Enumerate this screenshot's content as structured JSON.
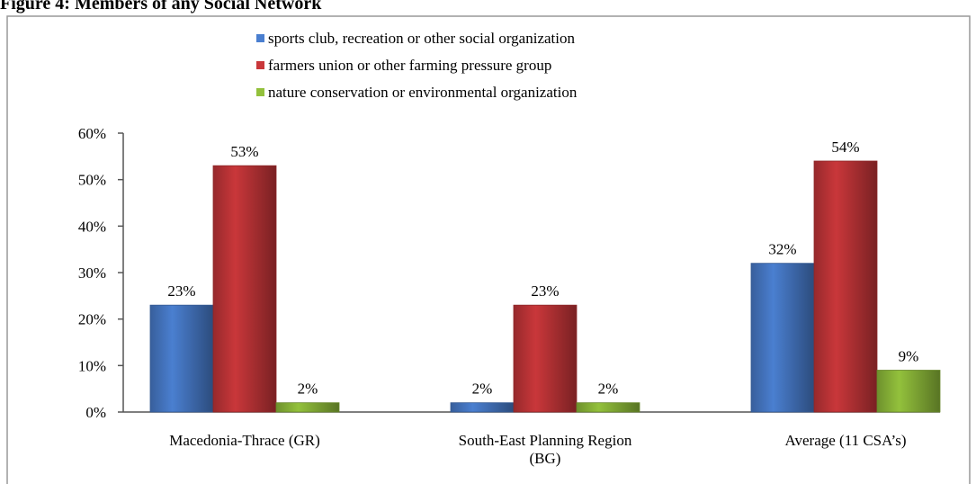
{
  "chart_data": {
    "type": "bar",
    "title": "Figure 4: Members of any Social Network",
    "categories": [
      "Macedonia-Thrace (GR)",
      "South-East Planning Region (BG)",
      "Average (11 CSA’s)"
    ],
    "series": [
      {
        "name": "sports club, recreation or other social organization",
        "color": "#4a7fd0",
        "values": [
          23,
          2,
          32
        ],
        "value_labels": [
          "23%",
          "2%",
          "32%"
        ]
      },
      {
        "name": "farmers union or other farming pressure group",
        "color": "#c9373a",
        "values": [
          53,
          23,
          54
        ],
        "value_labels": [
          "53%",
          "23%",
          "54%"
        ]
      },
      {
        "name": "nature conservation or environmental organization",
        "color": "#93c13c",
        "values": [
          2,
          2,
          9
        ],
        "value_labels": [
          "2%",
          "2%",
          "9%"
        ]
      }
    ],
    "ylim": [
      0,
      60
    ],
    "yticks": [
      {
        "value": 0,
        "label": "0%"
      },
      {
        "value": 10,
        "label": "10%"
      },
      {
        "value": 20,
        "label": "20%"
      },
      {
        "value": 30,
        "label": "30%"
      },
      {
        "value": 40,
        "label": "40%"
      },
      {
        "value": 50,
        "label": "50%"
      },
      {
        "value": 60,
        "label": "60%"
      }
    ],
    "legend": "top"
  }
}
